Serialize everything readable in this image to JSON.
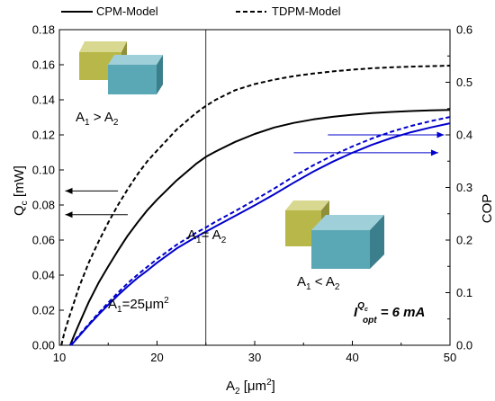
{
  "chart_data": {
    "type": "line",
    "xlabel": "A",
    "xlabel_sub": "2",
    "xlabel_unit": " [μm",
    "xlabel_unit_sup": "2",
    "xlabel_unit_end": "]",
    "ylabel_left": "Q",
    "ylabel_left_sub": "c",
    "ylabel_left_unit": " [mW]",
    "ylabel_right": "COP",
    "xlim": [
      10,
      50
    ],
    "ylim_left": [
      0,
      0.18
    ],
    "ylim_right": [
      0,
      0.6
    ],
    "xticks": [
      "10",
      "20",
      "30",
      "40",
      "50"
    ],
    "yticks_left": [
      "0.00",
      "0.02",
      "0.04",
      "0.06",
      "0.08",
      "0.10",
      "0.12",
      "0.14",
      "0.16",
      "0.18"
    ],
    "yticks_right": [
      "0.0",
      "0.1",
      "0.2",
      "0.3",
      "0.4",
      "0.5",
      "0.6"
    ],
    "grid": false,
    "legend_position": "top",
    "legend": [
      {
        "label": "CPM-Model",
        "style": "solid"
      },
      {
        "label": "TDPM-Model",
        "style": "dashed"
      }
    ],
    "series": [
      {
        "name": "CPM-Model",
        "axis": "left",
        "color": "#000000",
        "style": "solid",
        "x": [
          11.1,
          11.5,
          12,
          13,
          14,
          15,
          16,
          17,
          18,
          19,
          20,
          22,
          24,
          25,
          26,
          28,
          30,
          32,
          34,
          36,
          38,
          40,
          42,
          44,
          46,
          48,
          50
        ],
        "y": [
          0.0,
          0.0055,
          0.012,
          0.0245,
          0.0355,
          0.045,
          0.054,
          0.0625,
          0.07,
          0.077,
          0.083,
          0.094,
          0.1035,
          0.1075,
          0.1105,
          0.116,
          0.1205,
          0.1242,
          0.1268,
          0.1288,
          0.1303,
          0.1315,
          0.1324,
          0.1331,
          0.1336,
          0.134,
          0.1342
        ]
      },
      {
        "name": "TDPM-Model",
        "axis": "left",
        "color": "#000000",
        "style": "dashed",
        "x": [
          10.2,
          10.5,
          11,
          11.5,
          12,
          13,
          14,
          15,
          16,
          17,
          18,
          19,
          20,
          22,
          24,
          25,
          26,
          28,
          30,
          32,
          34,
          36,
          38,
          40,
          42,
          44,
          46,
          48,
          50
        ],
        "y": [
          0.0,
          0.007,
          0.016,
          0.0245,
          0.033,
          0.047,
          0.059,
          0.07,
          0.08,
          0.089,
          0.0975,
          0.105,
          0.111,
          0.123,
          0.1325,
          0.1365,
          0.14,
          0.1455,
          0.149,
          0.1515,
          0.1535,
          0.155,
          0.1562,
          0.1572,
          0.158,
          0.1585,
          0.1589,
          0.1592,
          0.1595
        ]
      },
      {
        "name": "CPM-Model",
        "axis": "right",
        "color": "#0000cc",
        "style": "solid",
        "x": [
          11.2,
          12,
          13,
          14,
          15,
          16,
          17,
          18,
          19,
          20,
          22,
          24,
          25,
          26,
          28,
          30,
          32,
          34,
          36,
          38,
          40,
          42,
          44,
          46,
          48,
          50
        ],
        "y": [
          0.0,
          0.017,
          0.038,
          0.058,
          0.077,
          0.095,
          0.112,
          0.128,
          0.142,
          0.157,
          0.184,
          0.206,
          0.216,
          0.226,
          0.246,
          0.266,
          0.287,
          0.309,
          0.33,
          0.349,
          0.366,
          0.381,
          0.394,
          0.405,
          0.414,
          0.422
        ]
      },
      {
        "name": "TDPM-Model",
        "axis": "right",
        "color": "#0000cc",
        "style": "dashed",
        "x": [
          11.1,
          12,
          13,
          14,
          15,
          16,
          17,
          18,
          19,
          20,
          22,
          24,
          25,
          26,
          28,
          30,
          32,
          34,
          36,
          38,
          40,
          42,
          44,
          46,
          48,
          50
        ],
        "y": [
          0.0,
          0.019,
          0.04,
          0.061,
          0.081,
          0.1,
          0.118,
          0.134,
          0.149,
          0.164,
          0.191,
          0.214,
          0.224,
          0.235,
          0.255,
          0.276,
          0.298,
          0.321,
          0.342,
          0.361,
          0.378,
          0.393,
          0.406,
          0.417,
          0.426,
          0.434
        ]
      }
    ],
    "vline": {
      "x": 25,
      "label": "A",
      "label_sub": "1",
      "label_mid": "= A",
      "label_sub2": "2"
    },
    "arrows": [
      {
        "axis": "left",
        "from_x": 16,
        "to_x": 10.6,
        "y": 0.088,
        "color": "#000000"
      },
      {
        "axis": "left",
        "from_x": 17,
        "to_x": 10.6,
        "y": 0.0745,
        "color": "#000000"
      },
      {
        "axis": "right",
        "from_x": 37.5,
        "to_x": 49.4,
        "y": 0.4,
        "color": "#0000cc"
      },
      {
        "axis": "right",
        "from_x": 34,
        "to_x": 48.8,
        "y": 0.366,
        "color": "#0000cc"
      }
    ],
    "annotations": {
      "a1_gt_a2": {
        "main": "A",
        "sub1": "1",
        "mid": " > A",
        "sub2": "2"
      },
      "a1_lt_a2": {
        "main": "A",
        "sub1": "1",
        "mid": " < A",
        "sub2": "2"
      },
      "a1_value": {
        "main": "A",
        "sub1": "1",
        "rest": "=25μm",
        "sup": "2"
      },
      "iopt": {
        "main": "I",
        "sup": "Q",
        "sup_sub": "c",
        "sub": "opt",
        "rest": " = 6 mA"
      }
    },
    "blocks_colors": {
      "yellow": "#b8b84a",
      "teal": "#4a9aa8"
    }
  }
}
